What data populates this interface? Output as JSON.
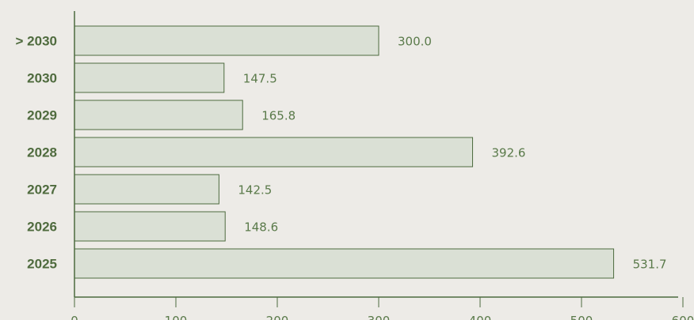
{
  "chart_data": {
    "type": "bar",
    "orientation": "horizontal",
    "categories": [
      "> 2030",
      "2030",
      "2029",
      "2028",
      "2027",
      "2026",
      "2025"
    ],
    "values": [
      300.0,
      147.5,
      165.8,
      392.6,
      142.5,
      148.6,
      531.7
    ],
    "value_labels": [
      "300.0",
      "147.5",
      "165.8",
      "392.6",
      "142.5",
      "148.6",
      "531.7"
    ],
    "x_ticks": [
      0,
      100,
      200,
      300,
      400,
      500,
      600
    ],
    "xlim": [
      0,
      600
    ],
    "title": "",
    "xlabel": "",
    "ylabel": "",
    "grid": false,
    "legend": "none"
  },
  "colors": {
    "background": "#edebe7",
    "bar_fill": "#dae0d5",
    "bar_stroke": "#4d6b3f",
    "axis": "#4d6b3f",
    "category_text": "#4f6b3e",
    "value_text": "#5a7a4a"
  }
}
